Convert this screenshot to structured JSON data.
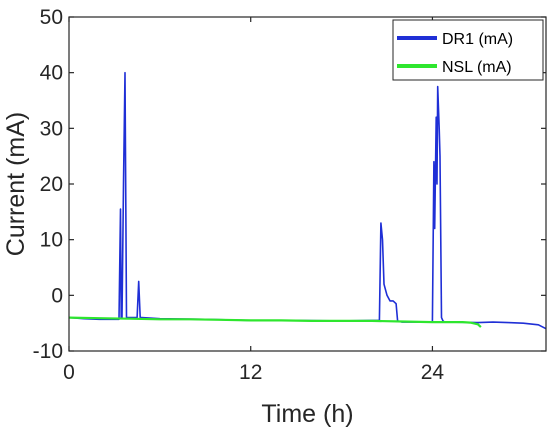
{
  "chart_data": {
    "type": "line",
    "xlabel": "Time (h)",
    "ylabel": "Current (mA)",
    "xlim": [
      0,
      31.5
    ],
    "ylim": [
      -10,
      50
    ],
    "xticks": [
      0,
      12,
      24
    ],
    "yticks": [
      -10,
      0,
      10,
      20,
      30,
      40,
      50
    ],
    "grid": false,
    "legend_position": "top-right",
    "series": [
      {
        "name": "DR1 (mA)",
        "color": "#1f2fd6",
        "x": [
          0,
          1,
          2,
          3,
          3.3,
          3.4,
          3.45,
          3.5,
          3.6,
          3.7,
          3.8,
          3.9,
          4.0,
          4.1,
          4.5,
          4.6,
          4.7,
          4.8,
          6,
          9,
          12,
          15,
          18,
          20,
          20.5,
          20.6,
          20.7,
          20.8,
          21.0,
          21.2,
          21.4,
          21.6,
          21.7,
          22,
          24,
          24.1,
          24.15,
          24.25,
          24.3,
          24.35,
          24.45,
          24.5,
          24.6,
          24.7,
          24.8,
          25,
          27,
          28,
          29,
          30,
          31,
          31.5
        ],
        "y": [
          -4,
          -4.2,
          -4.3,
          -4.3,
          -4.3,
          15.5,
          -4,
          -4,
          20,
          40,
          -4,
          -4,
          -4,
          -4,
          -4,
          2.5,
          -4,
          -4,
          -4.2,
          -4.3,
          -4.5,
          -4.5,
          -4.6,
          -4.5,
          -4.5,
          13,
          10,
          2,
          0,
          -1,
          -1,
          -1.5,
          -4.6,
          -4.8,
          -4.8,
          24,
          12,
          32,
          20,
          37.5,
          30,
          25,
          -4,
          -4.6,
          -4.8,
          -4.8,
          -4.9,
          -4.8,
          -4.9,
          -5,
          -5.3,
          -6
        ]
      },
      {
        "name": "NSL (mA)",
        "color": "#2ee62e",
        "x": [
          0,
          2,
          4,
          6,
          8,
          10,
          12,
          14,
          16,
          18,
          20,
          22,
          24,
          26,
          26.5,
          27,
          27.2
        ],
        "y": [
          -4,
          -4.1,
          -4.2,
          -4.3,
          -4.3,
          -4.4,
          -4.5,
          -4.5,
          -4.6,
          -4.6,
          -4.6,
          -4.7,
          -4.8,
          -4.8,
          -4.9,
          -5.2,
          -5.7
        ]
      }
    ]
  }
}
